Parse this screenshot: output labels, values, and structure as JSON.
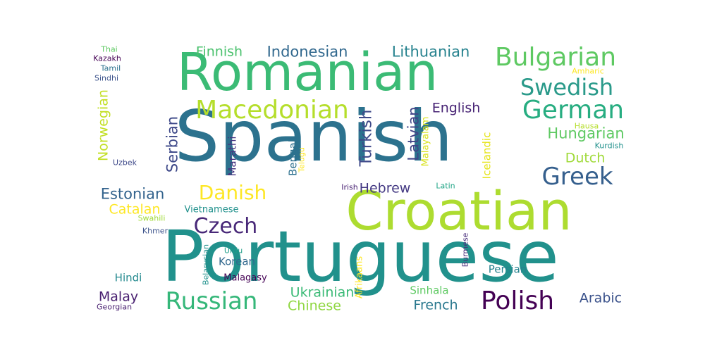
{
  "colors": {
    "background": "#ffffff",
    "palette": [
      "#440154",
      "#472d7b",
      "#3b528b",
      "#2c728e",
      "#21918c",
      "#28ae80",
      "#5ec962",
      "#addc30",
      "#fde725"
    ]
  },
  "words": [
    {
      "text": "Spanish",
      "color": "#2c728e"
    },
    {
      "text": "Portuguese",
      "color": "#21918c"
    },
    {
      "text": "Croatian",
      "color": "#addc30"
    },
    {
      "text": "Romanian",
      "color": "#3bbb75"
    },
    {
      "text": "Bulgarian",
      "color": "#5ec962"
    },
    {
      "text": "Macedonian",
      "color": "#b5de2b"
    },
    {
      "text": "Swedish",
      "color": "#2a9a8a"
    },
    {
      "text": "German",
      "color": "#27ad81"
    },
    {
      "text": "Greek",
      "color": "#355f8d"
    },
    {
      "text": "Danish",
      "color": "#fde725"
    },
    {
      "text": "Czech",
      "color": "#482878"
    },
    {
      "text": "Polish",
      "color": "#440154"
    },
    {
      "text": "Russian",
      "color": "#35b779"
    },
    {
      "text": "Finnish",
      "color": "#4ac16d"
    },
    {
      "text": "Indonesian",
      "color": "#31688e"
    },
    {
      "text": "Lithuanian",
      "color": "#26828e"
    },
    {
      "text": "Hungarian",
      "color": "#5ec962"
    },
    {
      "text": "Dutch",
      "color": "#a0da39"
    },
    {
      "text": "English",
      "color": "#482475"
    },
    {
      "text": "Turkish",
      "color": "#3e4989"
    },
    {
      "text": "Latvian",
      "color": "#414487"
    },
    {
      "text": "Serbian",
      "color": "#3e4989"
    },
    {
      "text": "Norwegian",
      "color": "#c2df23"
    },
    {
      "text": "Estonian",
      "color": "#33638d"
    },
    {
      "text": "Catalan",
      "color": "#fde725"
    },
    {
      "text": "Hebrew",
      "color": "#443983"
    },
    {
      "text": "Ukrainian",
      "color": "#3aba76"
    },
    {
      "text": "Chinese",
      "color": "#90d743"
    },
    {
      "text": "Malay",
      "color": "#481f70"
    },
    {
      "text": "French",
      "color": "#2a788e"
    },
    {
      "text": "Arabic",
      "color": "#3b528b"
    },
    {
      "text": "Korean",
      "color": "#31688e"
    },
    {
      "text": "Persian",
      "color": "#26828e"
    },
    {
      "text": "Hindi",
      "color": "#23898e"
    },
    {
      "text": "Bengali",
      "color": "#2d708e"
    },
    {
      "text": "Marathi",
      "color": "#463480"
    },
    {
      "text": "Malayalam",
      "color": "#d8e219"
    },
    {
      "text": "Icelandic",
      "color": "#e5e419"
    },
    {
      "text": "Afrikaans",
      "color": "#fde725"
    },
    {
      "text": "Sinhala",
      "color": "#5ec962"
    },
    {
      "text": "Vietnamese",
      "color": "#21918c"
    },
    {
      "text": "Swahili",
      "color": "#a0da39"
    },
    {
      "text": "Khmer",
      "color": "#3b528b"
    },
    {
      "text": "Urdu",
      "color": "#1f9e89"
    },
    {
      "text": "Belarusian",
      "color": "#21918c"
    },
    {
      "text": "Malagasy",
      "color": "#440154"
    },
    {
      "text": "Burmese",
      "color": "#472d7b"
    },
    {
      "text": "Irish",
      "color": "#482173"
    },
    {
      "text": "Latin",
      "color": "#20a486"
    },
    {
      "text": "Telugu",
      "color": "#fde725"
    },
    {
      "text": "Uzbek",
      "color": "#3e4989"
    },
    {
      "text": "Thai",
      "color": "#5ec962"
    },
    {
      "text": "Kazakh",
      "color": "#440154"
    },
    {
      "text": "Tamil",
      "color": "#2c728e"
    },
    {
      "text": "Sindhi",
      "color": "#3b528b"
    },
    {
      "text": "Amharic",
      "color": "#fde725"
    },
    {
      "text": "Hausa",
      "color": "#b5de2b"
    },
    {
      "text": "Kurdish",
      "color": "#21918c"
    },
    {
      "text": "Georgian",
      "color": "#481f70"
    }
  ]
}
